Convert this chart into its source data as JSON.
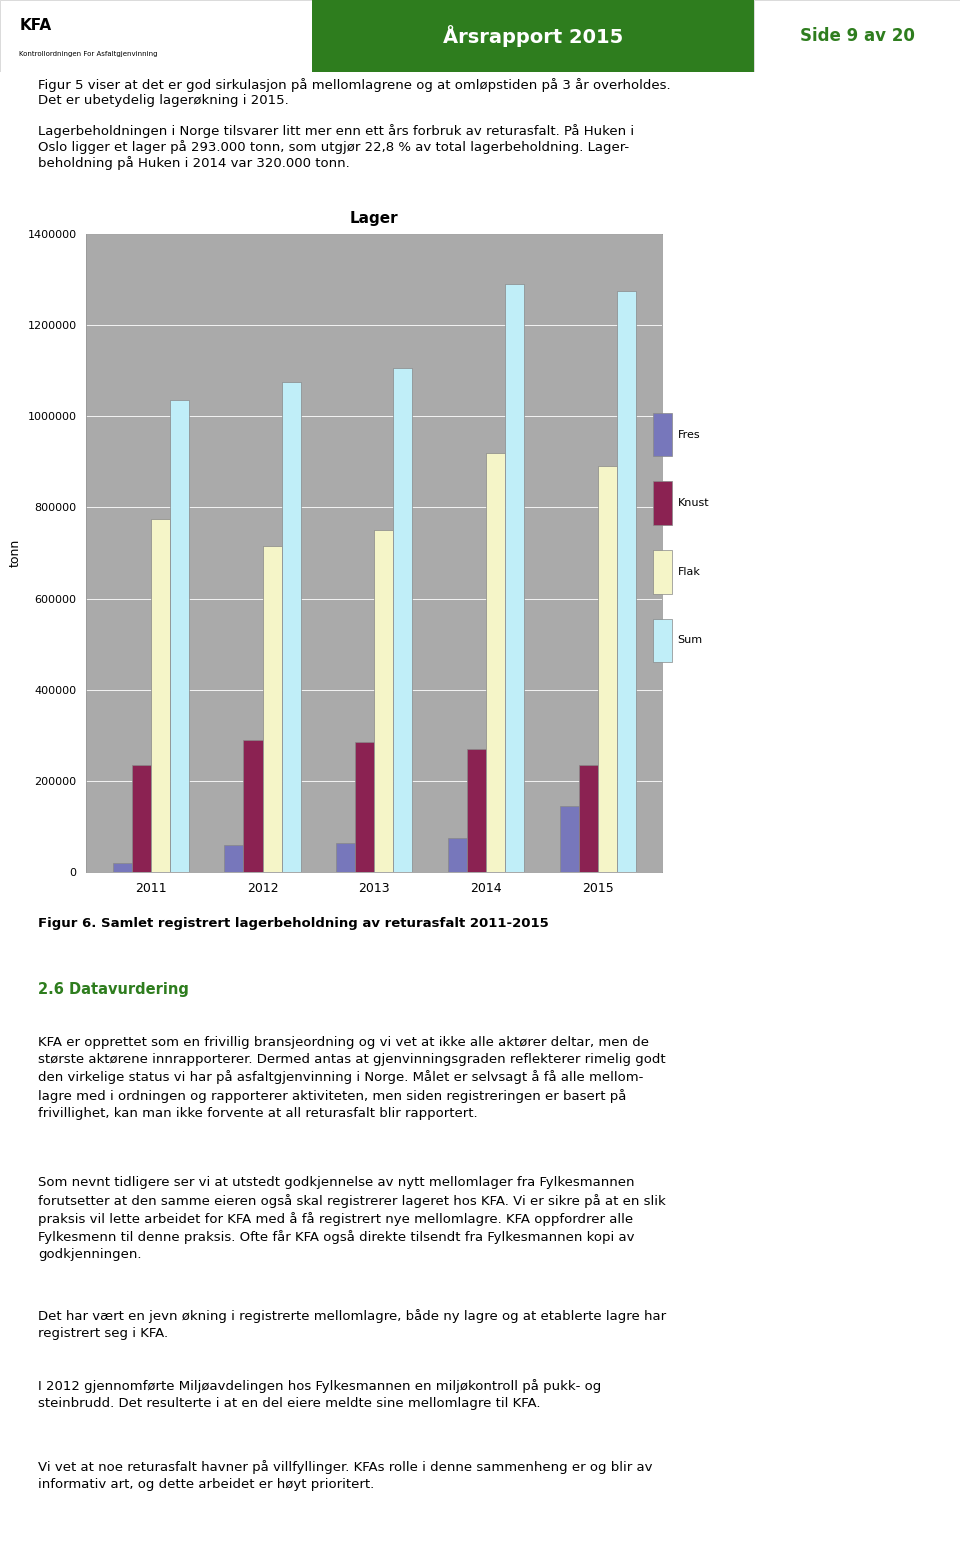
{
  "title": "Lager",
  "ylabel": "tonn",
  "years": [
    "2011",
    "2012",
    "2013",
    "2014",
    "2015"
  ],
  "series_names": [
    "Fres",
    "Knust",
    "Flak",
    "Sum"
  ],
  "series_values": {
    "Fres": [
      20000,
      60000,
      65000,
      75000,
      145000
    ],
    "Knust": [
      235000,
      290000,
      285000,
      270000,
      235000
    ],
    "Flak": [
      775000,
      715000,
      750000,
      920000,
      890000
    ],
    "Sum": [
      1035000,
      1075000,
      1105000,
      1290000,
      1275000
    ]
  },
  "bar_colors": {
    "Fres": "#7777bb",
    "Knust": "#8b2252",
    "Flak": "#f5f5c8",
    "Sum": "#c0eef8"
  },
  "plot_bg": "#aaaaaa",
  "chart_border": "#cccccc",
  "chart_bg": "#ffffff",
  "fig_bg": "#ffffff",
  "ylim": [
    0,
    1400000
  ],
  "yticks": [
    0,
    200000,
    400000,
    600000,
    800000,
    1000000,
    1200000,
    1400000
  ],
  "bar_width": 0.17,
  "header_green": "#2e7d1e",
  "header_text_color": "#ffffff",
  "section_color": "#2e7d1e",
  "header_title": "Årsrapport 2015",
  "header_page": "Side 9 av 20",
  "body_text_1": "Figur 5 viser at det er god sirkulasjon på mellomlagrene og at omløpstiden på 3 år overholdes.",
  "body_text_2": "Det er ubetydelig lagerøkning i 2015.",
  "body_text_3": "Lagerbeholdningen i Norge tilsvarer litt mer enn ett års forbruk av returasfalt. På Huken i",
  "body_text_4": "Oslo ligger et lager på 293.000 tonn, som utgjør 22,8 % av total lagerbeholdning. Lager-",
  "body_text_5": "beholdning på Huken i 2014 var 320.000 tonn.",
  "fig_caption": "Figur 6. Samlet registrert lagerbeholdning av returasfalt 2011-2015",
  "section_title": "2.6 Datavurdering",
  "para1": "KFA er opprettet som en frivillig bransjeordning og vi vet at ikke alle aktører deltar, men de\nstørste aktørene innrapporterer. Dermed antas at gjenvinningsgraden reflekterer rimelig godt\nden virkelige status vi har på asfaltgjenvinning i Norge. Målet er selvsagt å få alle mellom-\nlagre med i ordningen og rapporterer aktiviteten, men siden registreringen er basert på\nfrivillighet, kan man ikke forvente at all returasfalt blir rapportert.",
  "para2": "Som nevnt tidligere ser vi at utstedt godkjennelse av nytt mellomlager fra Fylkesmannen\nforutsetter at den samme eieren også skal registrerer lageret hos KFA. Vi er sikre på at en slik\npraksis vil lette arbeidet for KFA med å få registrert nye mellomlagre. KFA oppfordrer alle\nFylkesmenn til denne praksis. Ofte får KFA også direkte tilsendt fra Fylkesmannen kopi av\ngodkjenningen.",
  "para3": "Det har vært en jevn økning i registrerte mellomlagre, både ny lagre og at etablerte lagre har\nregistrert seg i KFA.",
  "para4": "I 2012 gjennomførte Miljøavdelingen hos Fylkesmannen en miljøkontroll på pukk- og\nsteinbrudd. Det resulterte i at en del eiere meldte sine mellomlagre til KFA.",
  "para5": "Vi vet at noe returasfalt havner på villfyllinger. KFAs rolle i denne sammenheng er og blir av\ninformativ art, og dette arbeidet er høyt prioritert."
}
